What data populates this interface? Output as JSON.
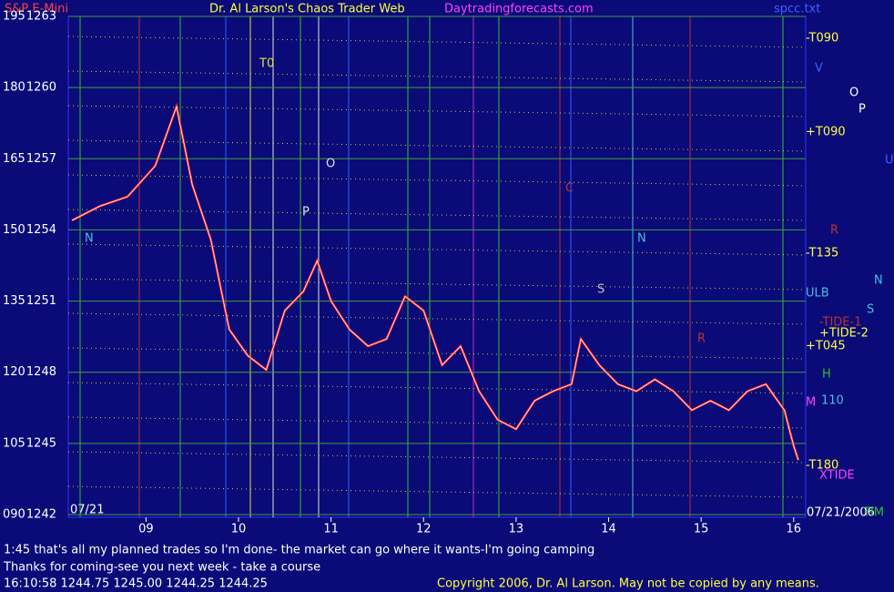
{
  "chart_data": {
    "type": "line",
    "instrument": "S&P E-Mini",
    "title": "Dr. Al Larson's Chaos Trader Web",
    "website": "Daytradingforecasts.com",
    "file": "spcc.txt",
    "date_label": "07/21",
    "x": [
      8.2,
      8.5,
      8.8,
      9.1,
      9.33,
      9.5,
      9.7,
      9.9,
      10.1,
      10.3,
      10.5,
      10.7,
      10.85,
      11.0,
      11.2,
      11.4,
      11.6,
      11.8,
      12.0,
      12.2,
      12.4,
      12.6,
      12.8,
      13.0,
      13.2,
      13.4,
      13.6,
      13.7,
      13.9,
      14.1,
      14.3,
      14.5,
      14.7,
      14.9,
      15.1,
      15.3,
      15.5,
      15.7,
      15.9,
      16.0,
      16.05
    ],
    "series": [
      {
        "name": "S&P E-Mini",
        "color": "#ff2020",
        "values": [
          1254.4,
          1255,
          1255.4,
          1256.7,
          1259.2,
          1255.9,
          1253.6,
          1249.8,
          1248.7,
          1248.1,
          1250.6,
          1251.4,
          1252.7,
          1251,
          1249.8,
          1249.1,
          1249.4,
          1251.2,
          1250.6,
          1248.3,
          1249.1,
          1247.2,
          1246,
          1245.6,
          1246.8,
          1247.2,
          1247.5,
          1249.4,
          1248.3,
          1247.5,
          1247.2,
          1247.7,
          1247.2,
          1246.4,
          1246.8,
          1246.4,
          1247.2,
          1247.5,
          1246.4,
          1244.9,
          1244.3
        ]
      }
    ],
    "xlim": [
      8.16,
      16.13
    ],
    "xticks": [
      {
        "value": 9,
        "label": "09"
      },
      10,
      11,
      12,
      13,
      14,
      15,
      16
    ],
    "ylim": [
      1242,
      1263
    ],
    "yticks": [
      1263,
      1260,
      1257,
      1254,
      1251,
      1248,
      1245,
      1242
    ],
    "y2lim": [
      90,
      195
    ],
    "y2ticks": [
      195,
      180,
      165,
      150,
      135,
      120,
      105,
      {
        "value": 90,
        "label": "090"
      }
    ],
    "grid": true,
    "chart_annotations": [
      "T0",
      "O",
      "P",
      "N",
      "C",
      "N",
      "S",
      "R"
    ],
    "right_labels": [
      "-T090",
      "V",
      "O",
      "P",
      "+T090",
      "U",
      "R",
      "-T135",
      "N",
      "ULB",
      "S",
      "-TIDE-1",
      "+TIDE-2",
      "+T045",
      "H",
      "M",
      "110",
      "-T180",
      "XTIDE",
      "07/21/2006",
      "TIM"
    ],
    "notes": [
      "1:45 that's all my planned trades so I'm done- the market can go where it wants-I'm going camping",
      "Thanks for coming-see you next week - take a course"
    ],
    "status": "16:10:58  1244.75 1245.00 1244.25 1244.25",
    "copyright": "Copyright 2006, Dr. Al Larson. May not be copied by any means."
  }
}
